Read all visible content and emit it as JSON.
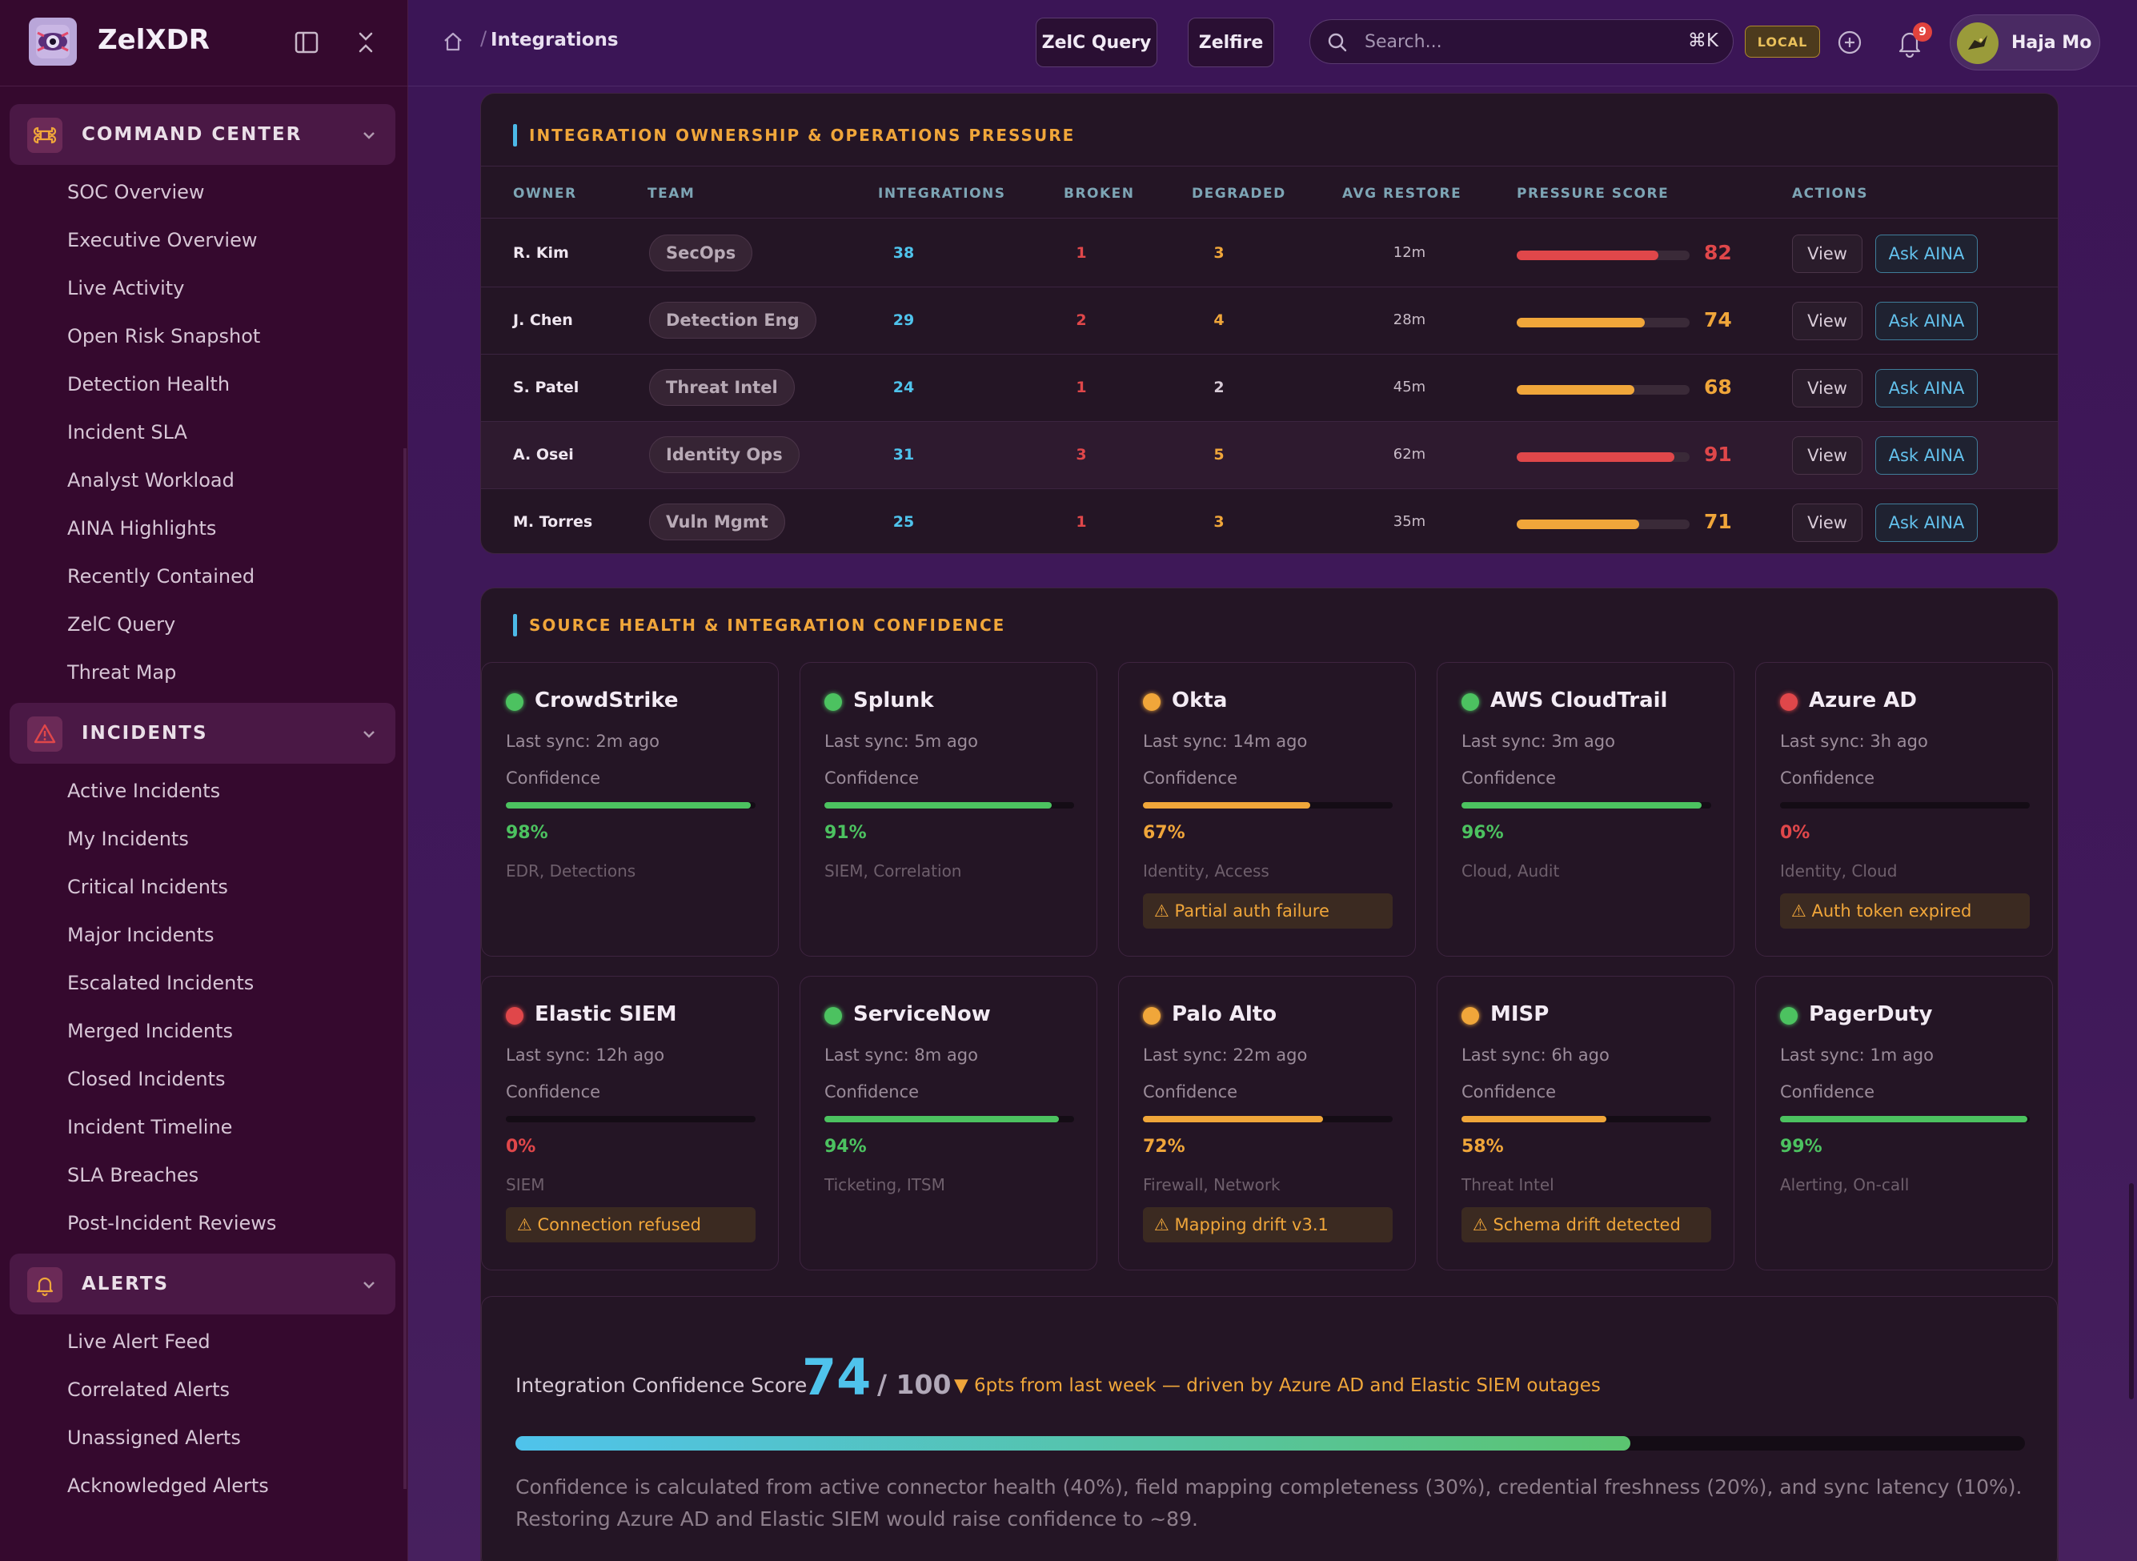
{
  "brand": {
    "name": "ZelXDR"
  },
  "sidebar": {
    "sections": [
      {
        "label": "COMMAND CENTER",
        "icon": "command-icon",
        "items": [
          "SOC Overview",
          "Executive Overview",
          "Live Activity",
          "Open Risk Snapshot",
          "Detection Health",
          "Incident SLA",
          "Analyst Workload",
          "AINA Highlights",
          "Recently Contained",
          "ZelC Query",
          "Threat Map"
        ]
      },
      {
        "label": "INCIDENTS",
        "icon": "warning-triangle-icon",
        "items": [
          "Active Incidents",
          "My Incidents",
          "Critical Incidents",
          "Major Incidents",
          "Escalated Incidents",
          "Merged Incidents",
          "Closed Incidents",
          "Incident Timeline",
          "SLA Breaches",
          "Post-Incident Reviews"
        ]
      },
      {
        "label": "ALERTS",
        "icon": "bell-icon",
        "items": [
          "Live Alert Feed",
          "Correlated Alerts",
          "Unassigned Alerts",
          "Acknowledged Alerts"
        ]
      }
    ]
  },
  "topbar": {
    "breadcrumb": "Integrations",
    "query_button": "ZelC Query",
    "zelfire_button": "Zelfire",
    "search_placeholder": "Search...",
    "search_shortcut": "⌘K",
    "env_badge": "LOCAL",
    "notification_count": "9",
    "user_name": "Haja Mo"
  },
  "ownership": {
    "title": "INTEGRATION OWNERSHIP & OPERATIONS PRESSURE",
    "columns": [
      "OWNER",
      "TEAM",
      "INTEGRATIONS",
      "BROKEN",
      "DEGRADED",
      "AVG RESTORE",
      "PRESSURE SCORE",
      "ACTIONS"
    ],
    "view_label": "View",
    "ask_label": "Ask AINA",
    "rows": [
      {
        "owner": "R. Kim",
        "team": "SecOps",
        "integrations": "38",
        "broken": "1",
        "degraded": "3",
        "restore": "12m",
        "score": "82",
        "level": 0.82,
        "color": "#e0474a"
      },
      {
        "owner": "J. Chen",
        "team": "Detection Eng",
        "integrations": "29",
        "broken": "2",
        "degraded": "4",
        "restore": "28m",
        "score": "74",
        "level": 0.74,
        "color": "#f0a63a"
      },
      {
        "owner": "S. Patel",
        "team": "Threat Intel",
        "integrations": "24",
        "broken": "1",
        "degraded": "2",
        "restore": "45m",
        "score": "68",
        "level": 0.68,
        "color": "#f0a63a"
      },
      {
        "owner": "A. Osei",
        "team": "Identity Ops",
        "integrations": "31",
        "broken": "3",
        "degraded": "5",
        "restore": "62m",
        "score": "91",
        "level": 0.91,
        "color": "#e0474a"
      },
      {
        "owner": "M. Torres",
        "team": "Vuln Mgmt",
        "integrations": "25",
        "broken": "1",
        "degraded": "3",
        "restore": "35m",
        "score": "71",
        "level": 0.71,
        "color": "#f0a63a"
      }
    ]
  },
  "sources": {
    "title": "SOURCE HEALTH & INTEGRATION CONFIDENCE",
    "confidence_label": "Confidence",
    "cards": [
      {
        "name": "CrowdStrike",
        "sync": "Last sync: 2m ago",
        "pct": "98%",
        "level": 0.98,
        "tags": "EDR, Detections",
        "warning": "",
        "status_color": "#4cc260",
        "bar_color": "#4cc260"
      },
      {
        "name": "Splunk",
        "sync": "Last sync: 5m ago",
        "pct": "91%",
        "level": 0.91,
        "tags": "SIEM, Correlation",
        "warning": "",
        "status_color": "#4cc260",
        "bar_color": "#4cc260"
      },
      {
        "name": "Okta",
        "sync": "Last sync: 14m ago",
        "pct": "67%",
        "level": 0.67,
        "tags": "Identity, Access",
        "warning": "⚠ Partial auth failure",
        "status_color": "#f0a63a",
        "bar_color": "#f0a63a"
      },
      {
        "name": "AWS CloudTrail",
        "sync": "Last sync: 3m ago",
        "pct": "96%",
        "level": 0.96,
        "tags": "Cloud, Audit",
        "warning": "",
        "status_color": "#4cc260",
        "bar_color": "#4cc260"
      },
      {
        "name": "Azure AD",
        "sync": "Last sync: 3h ago",
        "pct": "0%",
        "level": 0.0,
        "tags": "Identity, Cloud",
        "warning": "⚠ Auth token expired",
        "status_color": "#e0474a",
        "bar_color": "#e0474a"
      },
      {
        "name": "Elastic SIEM",
        "sync": "Last sync: 12h ago",
        "pct": "0%",
        "level": 0.0,
        "tags": "SIEM",
        "warning": "⚠ Connection refused",
        "status_color": "#e0474a",
        "bar_color": "#e0474a"
      },
      {
        "name": "ServiceNow",
        "sync": "Last sync: 8m ago",
        "pct": "94%",
        "level": 0.94,
        "tags": "Ticketing, ITSM",
        "warning": "",
        "status_color": "#4cc260",
        "bar_color": "#4cc260"
      },
      {
        "name": "Palo Alto",
        "sync": "Last sync: 22m ago",
        "pct": "72%",
        "level": 0.72,
        "tags": "Firewall, Network",
        "warning": "⚠ Mapping drift v3.1",
        "status_color": "#f0a63a",
        "bar_color": "#f0a63a"
      },
      {
        "name": "MISP",
        "sync": "Last sync: 6h ago",
        "pct": "58%",
        "level": 0.58,
        "tags": "Threat Intel",
        "warning": "⚠ Schema drift detected",
        "status_color": "#f0a63a",
        "bar_color": "#f0a63a"
      },
      {
        "name": "PagerDuty",
        "sync": "Last sync: 1m ago",
        "pct": "99%",
        "level": 0.99,
        "tags": "Alerting, On-call",
        "warning": "",
        "status_color": "#4cc260",
        "bar_color": "#4cc260"
      }
    ]
  },
  "score": {
    "label": "Integration Confidence Score",
    "value": "74",
    "denominator": "/ 100",
    "level": 0.74,
    "delta": "▼ 6pts from last week — driven by Azure AD and Elastic SIEM outages",
    "description": "Confidence is calculated from active connector health (40%), field mapping completeness (30%), credential freshness (20%), and sync latency (10%). Restoring Azure AD and Elastic SIEM would raise confidence to ~89."
  }
}
